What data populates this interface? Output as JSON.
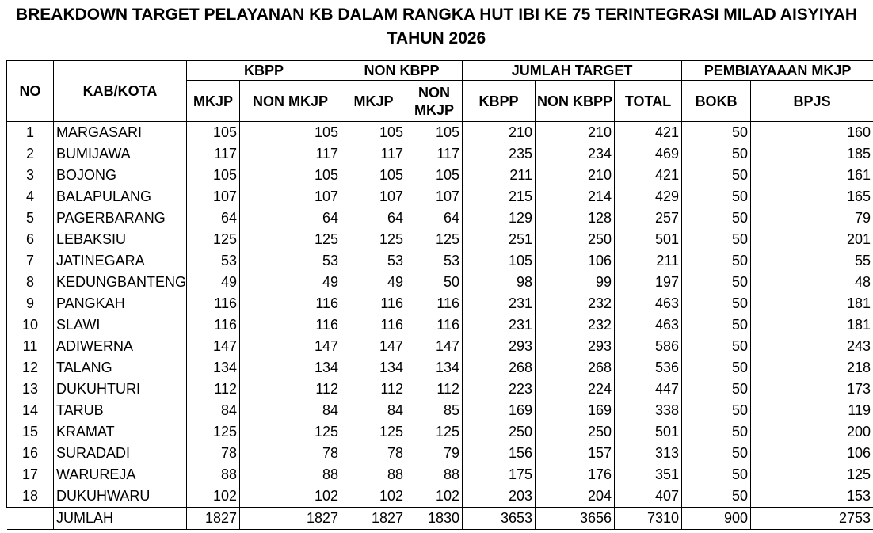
{
  "title": "BREAKDOWN TARGET PELAYANAN KB DALAM RANGKA HUT IBI KE 75 TERINTEGRASI MILAD AISYIYAH TAHUN 2026",
  "table": {
    "header": {
      "no": "NO",
      "kab": "KAB/KOTA",
      "groups": [
        "KBPP",
        "NON KBPP",
        "JUMLAH TARGET",
        "PEMBIAYAAAN MKJP"
      ],
      "columns": [
        "MKJP",
        "NON MKJP",
        "MKJP",
        "NON MKJP",
        "KBPP",
        "NON KBPP",
        "TOTAL",
        "BOKB",
        "BPJS"
      ]
    },
    "rows": [
      [
        1,
        "MARGASARI",
        105,
        105,
        105,
        105,
        210,
        210,
        421,
        50,
        160
      ],
      [
        2,
        "BUMIJAWA",
        117,
        117,
        117,
        117,
        235,
        234,
        469,
        50,
        185
      ],
      [
        3,
        "BOJONG",
        105,
        105,
        105,
        105,
        211,
        210,
        421,
        50,
        161
      ],
      [
        4,
        "BALAPULANG",
        107,
        107,
        107,
        107,
        215,
        214,
        429,
        50,
        165
      ],
      [
        5,
        "PAGERBARANG",
        64,
        64,
        64,
        64,
        129,
        128,
        257,
        50,
        79
      ],
      [
        6,
        "LEBAKSIU",
        125,
        125,
        125,
        125,
        251,
        250,
        501,
        50,
        201
      ],
      [
        7,
        "JATINEGARA",
        53,
        53,
        53,
        53,
        105,
        106,
        211,
        50,
        55
      ],
      [
        8,
        "KEDUNGBANTENG",
        49,
        49,
        49,
        50,
        98,
        99,
        197,
        50,
        48
      ],
      [
        9,
        "PANGKAH",
        116,
        116,
        116,
        116,
        231,
        232,
        463,
        50,
        181
      ],
      [
        10,
        "SLAWI",
        116,
        116,
        116,
        116,
        231,
        232,
        463,
        50,
        181
      ],
      [
        11,
        "ADIWERNA",
        147,
        147,
        147,
        147,
        293,
        293,
        586,
        50,
        243
      ],
      [
        12,
        "TALANG",
        134,
        134,
        134,
        134,
        268,
        268,
        536,
        50,
        218
      ],
      [
        13,
        "DUKUHTURI",
        112,
        112,
        112,
        112,
        223,
        224,
        447,
        50,
        173
      ],
      [
        14,
        "TARUB",
        84,
        84,
        84,
        85,
        169,
        169,
        338,
        50,
        119
      ],
      [
        15,
        "KRAMAT",
        125,
        125,
        125,
        125,
        250,
        250,
        501,
        50,
        200
      ],
      [
        16,
        "SURADADI",
        78,
        78,
        78,
        79,
        156,
        157,
        313,
        50,
        106
      ],
      [
        17,
        "WARUREJA",
        88,
        88,
        88,
        88,
        175,
        176,
        351,
        50,
        125
      ],
      [
        18,
        "DUKUHWARU",
        102,
        102,
        102,
        102,
        203,
        204,
        407,
        50,
        153
      ]
    ],
    "total": {
      "label": "JUMLAH",
      "values": [
        1827,
        1827,
        1827,
        1830,
        3653,
        3656,
        7310,
        900,
        2753
      ]
    }
  }
}
